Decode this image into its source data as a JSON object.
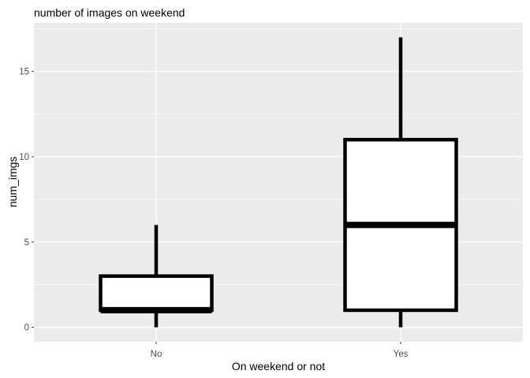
{
  "chart_data": {
    "type": "boxplot",
    "title": "number of images on weekend",
    "xlabel": "On weekend or not",
    "ylabel": "num_imgs",
    "categories": [
      "No",
      "Yes"
    ],
    "boxes": [
      {
        "category": "No",
        "min": 0,
        "q1": 1,
        "median": 1,
        "q3": 3,
        "max": 6
      },
      {
        "category": "Yes",
        "min": 0,
        "q1": 1,
        "median": 6,
        "q3": 11,
        "max": 17
      }
    ],
    "yticks": [
      0,
      5,
      10,
      15
    ],
    "ylim": [
      -0.85,
      17.85
    ],
    "grid": true,
    "colors": {
      "panel": "#ebebeb",
      "grid": "#ffffff",
      "box_fill": "#ffffff",
      "box_line": "#000000"
    }
  }
}
